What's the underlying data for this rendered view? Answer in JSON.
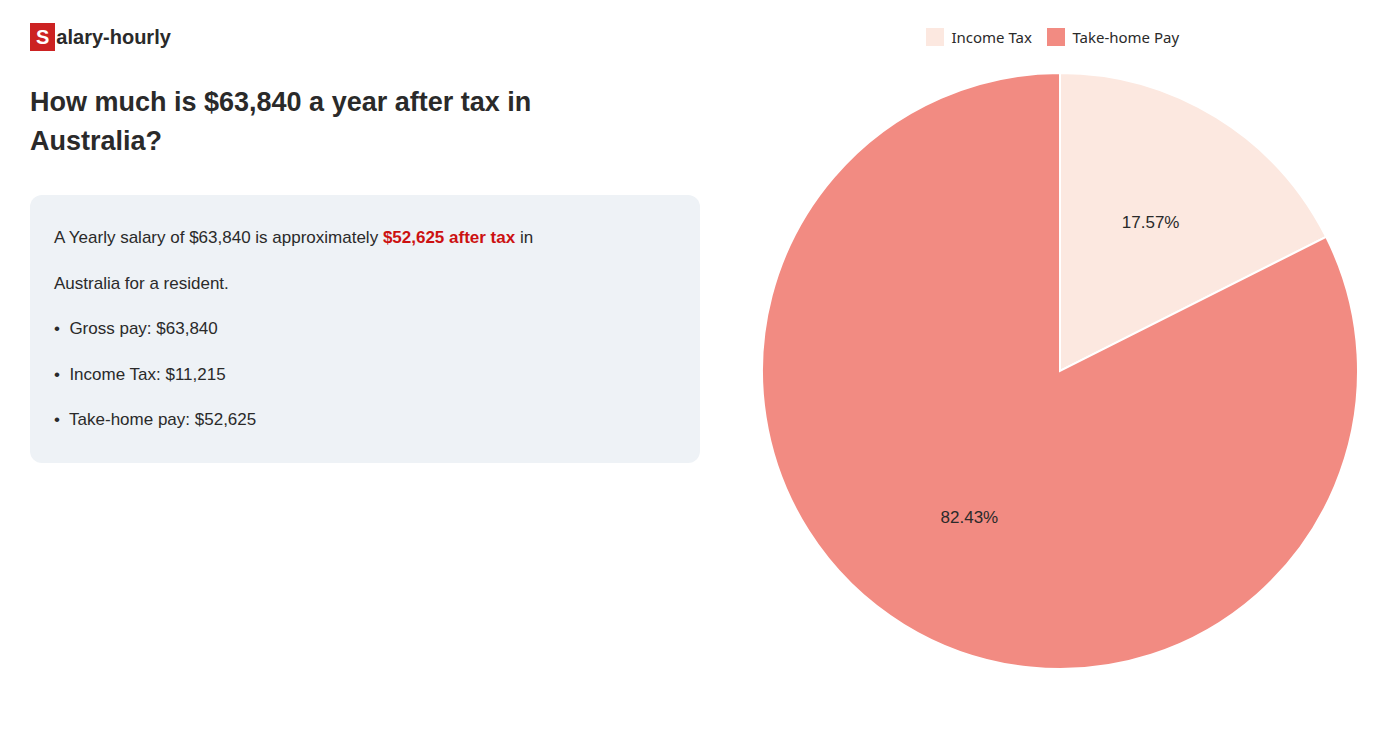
{
  "chart_data": {
    "type": "pie",
    "title": "How much is $63,840 a year after tax in\nAustralia?",
    "categories": [
      "Income Tax",
      "Take-home Pay"
    ],
    "values": [
      17.57,
      82.43
    ],
    "value_labels": [
      "17.57%",
      "82.43%"
    ],
    "colors": [
      "#fce8e0",
      "#f28b82"
    ],
    "data_labels": true,
    "legend": "top",
    "annotations": [
      [
        {
          "text": "S",
          "color": "#cc2222"
        },
        {
          "text": "alary-hourly"
        }
      ],
      [
        {
          "text": "A Yearly salary of $63,840 is approximately "
        },
        {
          "text": "$52,625 after tax",
          "color": "#cc1111"
        },
        {
          "text": " in"
        }
      ],
      [
        {
          "text": "Australia for a resident."
        }
      ],
      [
        {
          "text": "•  Gross pay: $63,840"
        }
      ],
      [
        {
          "text": "•  Income Tax: $11,215"
        }
      ],
      [
        {
          "text": "•  Take-home pay: $52,625"
        }
      ]
    ]
  }
}
